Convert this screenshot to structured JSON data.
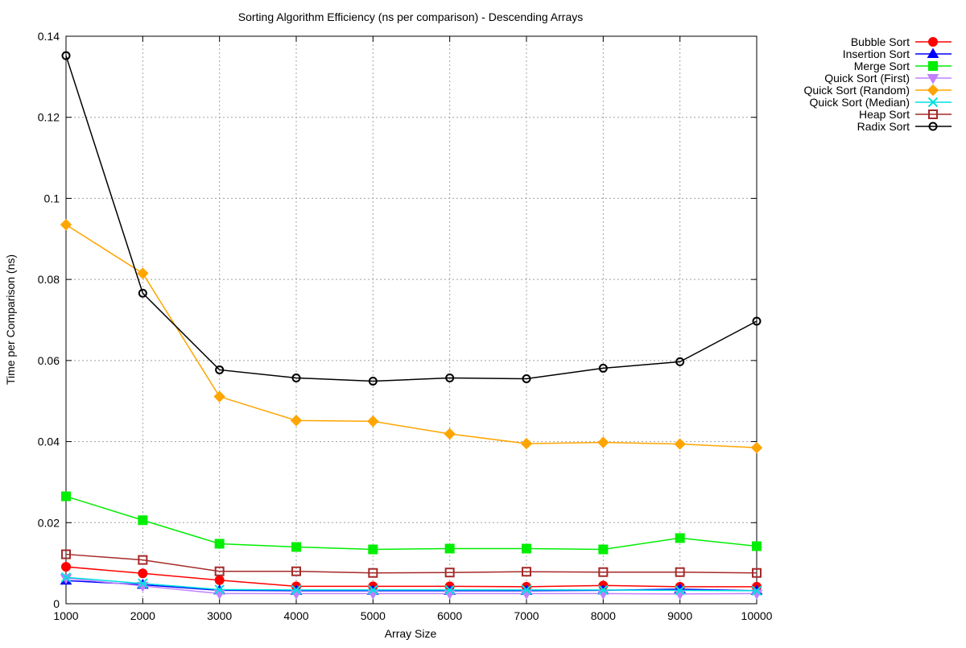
{
  "chart_data": {
    "type": "line",
    "title": "Sorting Algorithm Efficiency (ns per comparison) - Descending Arrays",
    "xlabel": "Array Size",
    "ylabel": "Time per Comparison (ns)",
    "x": [
      1000,
      2000,
      3000,
      4000,
      5000,
      6000,
      7000,
      8000,
      9000,
      10000
    ],
    "xlim": [
      1000,
      10000
    ],
    "ylim": [
      0,
      0.14
    ],
    "xticks": [
      1000,
      2000,
      3000,
      4000,
      5000,
      6000,
      7000,
      8000,
      9000,
      10000
    ],
    "yticks": [
      0,
      0.02,
      0.04,
      0.06,
      0.08,
      0.1,
      0.12,
      0.14
    ],
    "ytick_labels": [
      "0",
      "0.02",
      "0.04",
      "0.06",
      "0.08",
      "0.1",
      "0.12",
      "0.14"
    ],
    "grid": true,
    "legend_position": "top-right (outside plot)",
    "series": [
      {
        "name": "Bubble Sort",
        "color": "#ff0000",
        "marker": "circle-filled",
        "values": [
          0.0091,
          0.0075,
          0.0058,
          0.0043,
          0.0043,
          0.0043,
          0.0042,
          0.0045,
          0.0042,
          0.0042
        ]
      },
      {
        "name": "Insertion Sort",
        "color": "#0000ff",
        "marker": "triangle-up-filled",
        "values": [
          0.0057,
          0.0047,
          0.0033,
          0.0032,
          0.0032,
          0.0032,
          0.0032,
          0.0033,
          0.0036,
          0.0032
        ]
      },
      {
        "name": "Merge Sort",
        "color": "#00ee00",
        "marker": "square-filled",
        "values": [
          0.0265,
          0.0206,
          0.0148,
          0.014,
          0.0134,
          0.0136,
          0.0136,
          0.0134,
          0.0162,
          0.0142
        ]
      },
      {
        "name": "Quick Sort (First)",
        "color": "#c080ff",
        "marker": "triangle-down-filled",
        "values": [
          0.0063,
          0.0044,
          0.0025,
          0.0025,
          0.0025,
          0.0025,
          0.0025,
          0.0025,
          0.0024,
          0.0025
        ]
      },
      {
        "name": "Quick Sort (Random)",
        "color": "#ffa500",
        "marker": "diamond-filled",
        "values": [
          0.0935,
          0.0815,
          0.0511,
          0.0452,
          0.045,
          0.0419,
          0.0395,
          0.0398,
          0.0394,
          0.0385
        ]
      },
      {
        "name": "Quick Sort (Median)",
        "color": "#00e0e0",
        "marker": "x",
        "values": [
          0.0065,
          0.005,
          0.0035,
          0.0034,
          0.0034,
          0.0034,
          0.0034,
          0.0034,
          0.0033,
          0.0032
        ]
      },
      {
        "name": "Heap Sort",
        "color": "#a52a2a",
        "marker": "square-open",
        "values": [
          0.0122,
          0.0108,
          0.008,
          0.008,
          0.0076,
          0.0077,
          0.0079,
          0.0078,
          0.0078,
          0.0076
        ]
      },
      {
        "name": "Radix Sort",
        "color": "#000000",
        "marker": "circle-open",
        "values": [
          0.1352,
          0.0766,
          0.0577,
          0.0557,
          0.0549,
          0.0557,
          0.0555,
          0.0581,
          0.0597,
          0.0697
        ]
      }
    ]
  }
}
